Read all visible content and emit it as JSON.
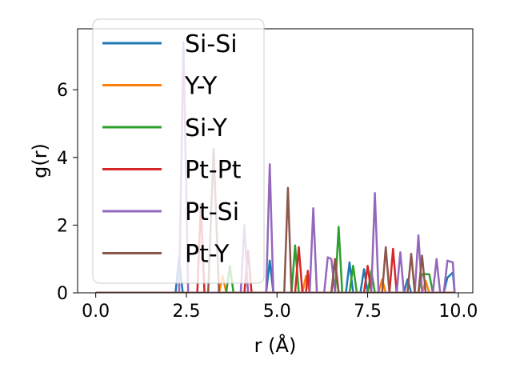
{
  "chart_data": {
    "type": "line",
    "xlabel": "r (Å)",
    "ylabel": "g(r)",
    "xlim": [
      -0.5,
      10.4
    ],
    "ylim": [
      0,
      7.8
    ],
    "xticks": [
      0.0,
      2.5,
      5.0,
      7.5,
      10.0
    ],
    "xtick_labels": [
      "0.0",
      "2.5",
      "5.0",
      "7.5",
      "10.0"
    ],
    "yticks": [
      0,
      2,
      4,
      6
    ],
    "ytick_labels": [
      "0",
      "2",
      "4",
      "6"
    ],
    "grid": false,
    "legend_position": "upper-left",
    "series": [
      {
        "name": "Si-Si",
        "color": "#1f77b4",
        "points": [
          [
            0,
            0
          ],
          [
            2.2,
            0
          ],
          [
            2.3,
            1.05
          ],
          [
            2.4,
            0
          ],
          [
            4.7,
            0
          ],
          [
            4.8,
            0.95
          ],
          [
            4.9,
            0
          ],
          [
            6.9,
            0
          ],
          [
            7.0,
            0.9
          ],
          [
            7.1,
            0
          ],
          [
            7.3,
            0
          ],
          [
            7.4,
            0.7
          ],
          [
            7.5,
            0
          ],
          [
            8.5,
            0
          ],
          [
            8.6,
            0.4
          ],
          [
            8.7,
            0
          ],
          [
            9.6,
            0
          ],
          [
            9.7,
            0.45
          ],
          [
            9.85,
            0.6
          ],
          [
            9.9,
            0
          ]
        ]
      },
      {
        "name": "Y-Y",
        "color": "#ff7f0e",
        "points": [
          [
            0,
            0
          ],
          [
            3.4,
            0
          ],
          [
            3.5,
            0.5
          ],
          [
            3.6,
            0
          ],
          [
            5.7,
            0
          ],
          [
            5.8,
            0.5
          ],
          [
            5.9,
            0
          ],
          [
            7.8,
            0
          ],
          [
            7.9,
            0.4
          ],
          [
            8.0,
            0
          ],
          [
            9.0,
            0
          ],
          [
            9.1,
            0.35
          ],
          [
            9.2,
            0
          ],
          [
            9.9,
            0
          ]
        ]
      },
      {
        "name": "Si-Y",
        "color": "#2ca02c",
        "points": [
          [
            0,
            0
          ],
          [
            3.6,
            0
          ],
          [
            3.7,
            0.8
          ],
          [
            3.8,
            0
          ],
          [
            5.4,
            0
          ],
          [
            5.5,
            1.4
          ],
          [
            5.6,
            0
          ],
          [
            6.6,
            0
          ],
          [
            6.7,
            1.95
          ],
          [
            6.8,
            0
          ],
          [
            7.0,
            0
          ],
          [
            7.1,
            0.8
          ],
          [
            7.2,
            0
          ],
          [
            7.5,
            0
          ],
          [
            7.6,
            0.65
          ],
          [
            7.7,
            0
          ],
          [
            8.9,
            0
          ],
          [
            9.0,
            0.55
          ],
          [
            9.2,
            0.55
          ],
          [
            9.3,
            0
          ],
          [
            9.9,
            0
          ]
        ]
      },
      {
        "name": "Pt-Pt",
        "color": "#d62728",
        "points": [
          [
            0,
            0
          ],
          [
            2.8,
            0
          ],
          [
            2.9,
            2.6
          ],
          [
            3.0,
            0
          ],
          [
            4.1,
            0
          ],
          [
            4.2,
            1.25
          ],
          [
            4.3,
            0
          ],
          [
            5.5,
            0
          ],
          [
            5.6,
            1.35
          ],
          [
            5.7,
            0
          ],
          [
            5.8,
            0
          ],
          [
            5.85,
            0.65
          ],
          [
            5.9,
            0
          ],
          [
            6.5,
            0
          ],
          [
            6.6,
            1.0
          ],
          [
            6.7,
            0
          ],
          [
            7.4,
            0
          ],
          [
            7.5,
            0.8
          ],
          [
            7.6,
            0
          ],
          [
            8.1,
            0
          ],
          [
            8.2,
            1.3
          ],
          [
            8.3,
            0
          ],
          [
            9.9,
            0
          ]
        ]
      },
      {
        "name": "Pt-Si",
        "color": "#9467bd",
        "points": [
          [
            0,
            0
          ],
          [
            2.3,
            0
          ],
          [
            2.42,
            7.4
          ],
          [
            2.55,
            0
          ],
          [
            4.0,
            0
          ],
          [
            4.1,
            2.0
          ],
          [
            4.2,
            0
          ],
          [
            4.7,
            0
          ],
          [
            4.8,
            3.8
          ],
          [
            4.9,
            0
          ],
          [
            5.9,
            0
          ],
          [
            6.0,
            2.5
          ],
          [
            6.1,
            0
          ],
          [
            6.3,
            0
          ],
          [
            6.4,
            1.05
          ],
          [
            6.5,
            1.0
          ],
          [
            6.6,
            0
          ],
          [
            7.6,
            0
          ],
          [
            7.7,
            2.95
          ],
          [
            7.8,
            0
          ],
          [
            8.3,
            0
          ],
          [
            8.4,
            1.2
          ],
          [
            8.5,
            0
          ],
          [
            8.8,
            0
          ],
          [
            8.9,
            1.7
          ],
          [
            9.0,
            0
          ],
          [
            9.3,
            0
          ],
          [
            9.4,
            1.0
          ],
          [
            9.5,
            0
          ],
          [
            9.6,
            0
          ],
          [
            9.7,
            0.95
          ],
          [
            9.85,
            0.9
          ],
          [
            9.9,
            0
          ]
        ]
      },
      {
        "name": "Pt-Y",
        "color": "#8c564b",
        "points": [
          [
            0,
            0
          ],
          [
            3.1,
            0
          ],
          [
            3.25,
            4.25
          ],
          [
            3.4,
            0
          ],
          [
            5.2,
            0
          ],
          [
            5.3,
            3.1
          ],
          [
            5.4,
            0
          ],
          [
            6.5,
            0
          ],
          [
            6.6,
            0.95
          ],
          [
            6.7,
            0
          ],
          [
            7.9,
            0
          ],
          [
            8.0,
            1.35
          ],
          [
            8.1,
            0
          ],
          [
            8.6,
            0
          ],
          [
            8.7,
            1.15
          ],
          [
            8.8,
            0
          ],
          [
            8.9,
            0
          ],
          [
            9.0,
            1.1
          ],
          [
            9.1,
            0
          ],
          [
            9.9,
            0
          ]
        ]
      }
    ]
  }
}
